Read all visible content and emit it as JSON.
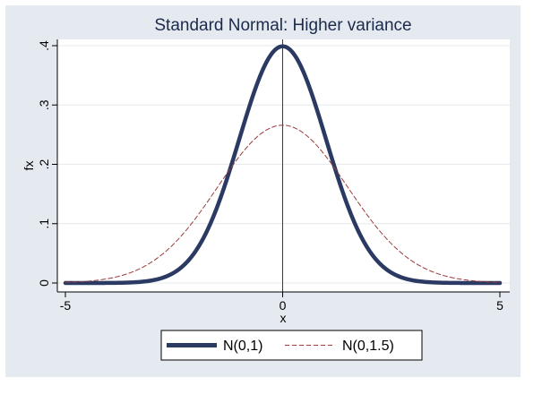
{
  "chart_data": {
    "type": "line",
    "title": "Standard Normal: Higher variance",
    "xlabel": "x",
    "ylabel": "fx",
    "xlim": [
      -5,
      5
    ],
    "ylim": [
      0,
      0.4
    ],
    "xticks": [
      -5,
      0,
      5
    ],
    "xtick_labels": [
      "-5",
      "0",
      "5"
    ],
    "yticks": [
      0,
      0.1,
      0.2,
      0.3,
      0.4
    ],
    "ytick_labels": [
      "0",
      ".1",
      ".2",
      ".3",
      ".4"
    ],
    "grid": true,
    "vertical_reference_line_x": 0,
    "legend_position": "bottom",
    "series": [
      {
        "name": "N(0,1)",
        "style": "solid-thick",
        "color": "#2b3a63",
        "x": [
          -5,
          -4.5,
          -4,
          -3.5,
          -3,
          -2.5,
          -2,
          -1.75,
          -1.5,
          -1.25,
          -1,
          -0.75,
          -0.5,
          -0.25,
          0,
          0.25,
          0.5,
          0.75,
          1,
          1.25,
          1.5,
          1.75,
          2,
          2.5,
          3,
          3.5,
          4,
          4.5,
          5
        ],
        "y": [
          1.5e-06,
          1.6e-05,
          0.000134,
          0.000873,
          0.004432,
          0.017528,
          0.053991,
          0.086277,
          0.129518,
          0.182649,
          0.241971,
          0.301137,
          0.352065,
          0.386668,
          0.398942,
          0.386668,
          0.352065,
          0.301137,
          0.241971,
          0.182649,
          0.129518,
          0.086277,
          0.053991,
          0.017528,
          0.004432,
          0.000873,
          0.000134,
          1.6e-05,
          1.5e-06
        ]
      },
      {
        "name": "N(0,1.5)",
        "style": "dashed-thin",
        "color": "#9b3a3a",
        "x": [
          -5,
          -4.5,
          -4,
          -3.5,
          -3,
          -2.5,
          -2,
          -1.75,
          -1.5,
          -1.25,
          -1,
          -0.75,
          -0.5,
          -0.25,
          0,
          0.25,
          0.5,
          0.75,
          1,
          1.25,
          1.5,
          1.75,
          2,
          2.5,
          3,
          3.5,
          4,
          4.5,
          5
        ],
        "y": [
          0.001028,
          0.002955,
          0.007597,
          0.017481,
          0.035994,
          0.066313,
          0.10934,
          0.134289,
          0.161314,
          0.188848,
          0.212965,
          0.234587,
          0.251589,
          0.262265,
          0.265962,
          0.262265,
          0.251589,
          0.234587,
          0.212965,
          0.188848,
          0.161314,
          0.134289,
          0.10934,
          0.066313,
          0.035994,
          0.017481,
          0.007597,
          0.002955,
          0.001028
        ]
      }
    ]
  },
  "colors": {
    "outer_background": "#e5eaf1",
    "plot_background": "#ffffff",
    "grid": "#e6e9ee",
    "reference_line": "#7a1e2b",
    "axis": "#000000"
  }
}
